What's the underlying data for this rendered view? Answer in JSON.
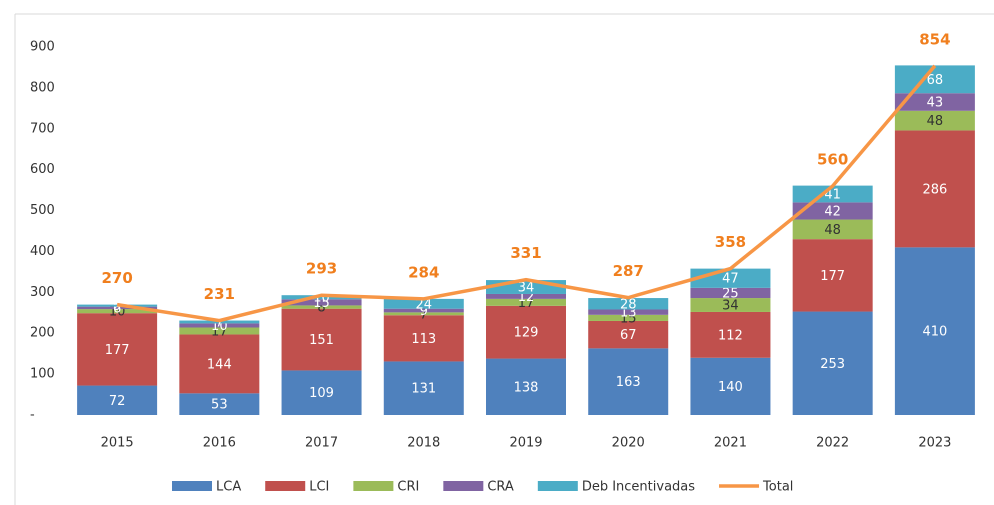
{
  "chart_data": {
    "type": "stacked_bar_line",
    "categories": [
      "2015",
      "2016",
      "2017",
      "2018",
      "2019",
      "2020",
      "2021",
      "2022",
      "2023"
    ],
    "series": [
      {
        "name": "LCA",
        "color": "#4f81bd",
        "values": [
          72,
          53,
          109,
          131,
          138,
          163,
          140,
          253,
          410
        ]
      },
      {
        "name": "LCI",
        "color": "#c0504d",
        "values": [
          177,
          144,
          151,
          113,
          129,
          67,
          112,
          177,
          286
        ]
      },
      {
        "name": "CRI",
        "color": "#9bbb59",
        "values": [
          10,
          17,
          8,
          7,
          17,
          15,
          34,
          48,
          48
        ]
      },
      {
        "name": "CRA",
        "color": "#8064a2",
        "values": [
          6,
          10,
          15,
          9,
          12,
          13,
          25,
          42,
          43
        ]
      },
      {
        "name": "Deb Incentivadas",
        "color": "#4bacc6",
        "values": [
          5,
          7,
          10,
          24,
          34,
          28,
          47,
          41,
          68
        ]
      },
      {
        "name": "Total",
        "color": "#f79646",
        "line": true,
        "values": [
          270,
          231,
          293,
          284,
          331,
          287,
          358,
          560,
          854
        ]
      }
    ],
    "ylim": [
      0,
      900
    ],
    "yticks": [
      {
        "value": 0,
        "label": "-"
      },
      100,
      200,
      300,
      400,
      500,
      600,
      700,
      800,
      900
    ],
    "legend": "bottom"
  }
}
